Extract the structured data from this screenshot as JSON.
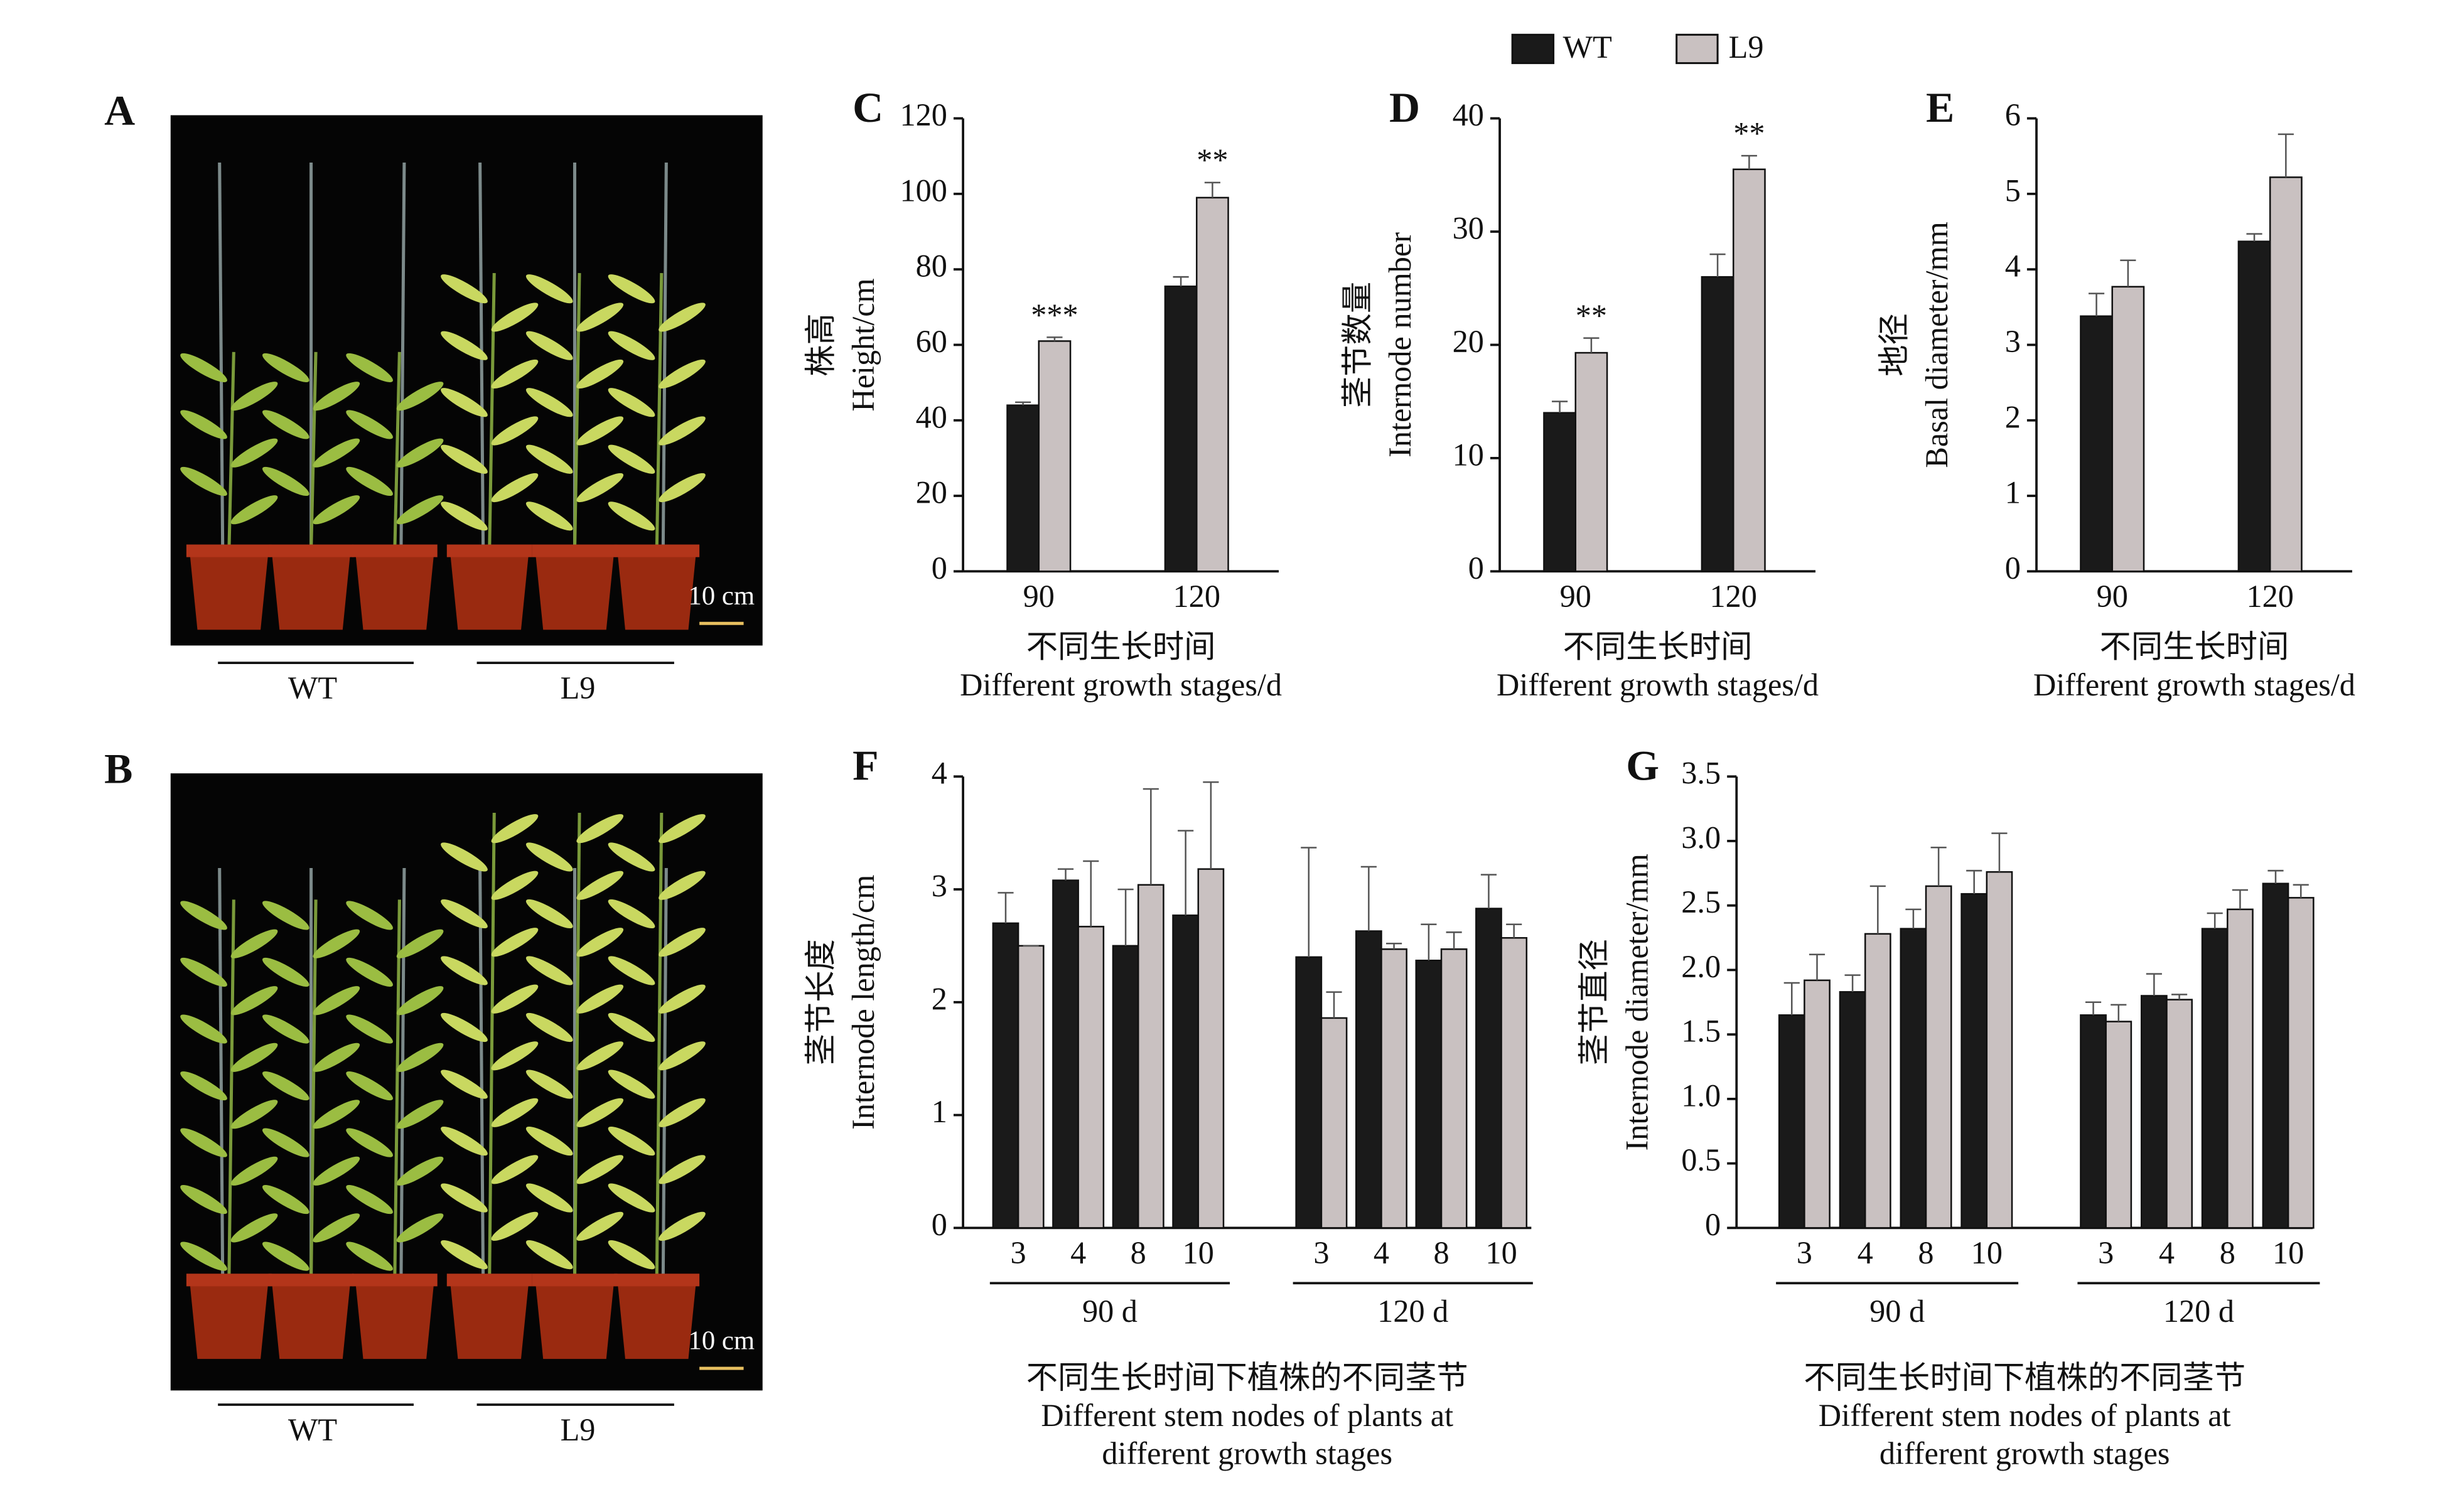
{
  "photos": [
    {
      "panel": "A",
      "scale": "10 cm",
      "groups": [
        "WT",
        "L9"
      ]
    },
    {
      "panel": "B",
      "scale": "10 cm",
      "groups": [
        "WT",
        "L9"
      ]
    }
  ],
  "chart_data": [
    {
      "type": "bar",
      "panel": "C",
      "ylabel": [
        "株高",
        "Height/cm"
      ],
      "xlabel": [
        "不同生长时间",
        "Different growth stages/d"
      ],
      "categories": [
        "90",
        "120"
      ],
      "ylim": [
        0,
        120
      ],
      "yticks": [
        0,
        20,
        40,
        60,
        80,
        100,
        120
      ],
      "series": [
        {
          "name": "WT",
          "color": "#1a1a1a",
          "values": [
            44,
            75.5
          ],
          "errors": [
            0.8,
            2.5
          ]
        },
        {
          "name": "L9",
          "color": "#c9c1c1",
          "values": [
            61,
            99
          ],
          "errors": [
            1,
            4
          ],
          "significance": [
            "***",
            "**"
          ]
        }
      ]
    },
    {
      "type": "bar",
      "panel": "D",
      "ylabel": [
        "茎节数量",
        "Internode number"
      ],
      "xlabel": [
        "不同生长时间",
        "Different growth stages/d"
      ],
      "categories": [
        "90",
        "120"
      ],
      "ylim": [
        0,
        40
      ],
      "yticks": [
        0,
        10,
        20,
        30,
        40
      ],
      "series": [
        {
          "name": "WT",
          "color": "#1a1a1a",
          "values": [
            14,
            26
          ],
          "errors": [
            1,
            2
          ]
        },
        {
          "name": "L9",
          "color": "#c9c1c1",
          "values": [
            19.3,
            35.5
          ],
          "errors": [
            1.3,
            1.2
          ],
          "significance": [
            "**",
            "**"
          ]
        }
      ]
    },
    {
      "type": "bar",
      "panel": "E",
      "ylabel": [
        "地径",
        "Basal diameter/mm"
      ],
      "xlabel": [
        "不同生长时间",
        "Different growth stages/d"
      ],
      "categories": [
        "90",
        "120"
      ],
      "ylim": [
        0,
        6
      ],
      "yticks": [
        0,
        1,
        2,
        3,
        4,
        5,
        6
      ],
      "series": [
        {
          "name": "WT",
          "color": "#1a1a1a",
          "values": [
            3.38,
            4.37
          ],
          "errors": [
            0.3,
            0.1
          ]
        },
        {
          "name": "L9",
          "color": "#c9c1c1",
          "values": [
            3.77,
            5.22
          ],
          "errors": [
            0.35,
            0.57
          ]
        }
      ]
    },
    {
      "type": "bar",
      "panel": "F",
      "ylabel": [
        "茎节长度",
        "Internode length/cm"
      ],
      "xlabel": [
        "不同生长时间下植株的不同茎节",
        "Different stem nodes of plants at",
        "different growth stages"
      ],
      "categories": [
        "3",
        "4",
        "8",
        "10",
        "3",
        "4",
        "8",
        "10"
      ],
      "groups": [
        "90 d",
        "120 d"
      ],
      "ylim": [
        0,
        4
      ],
      "yticks": [
        0,
        1,
        2,
        3,
        4
      ],
      "series": [
        {
          "name": "WT",
          "color": "#1a1a1a",
          "values": [
            2.7,
            3.08,
            2.5,
            2.77,
            2.4,
            2.63,
            2.37,
            2.83
          ],
          "errors": [
            0.27,
            0.1,
            0.5,
            0.75,
            0.97,
            0.57,
            0.32,
            0.3
          ]
        },
        {
          "name": "L9",
          "color": "#c9c1c1",
          "values": [
            2.5,
            2.67,
            3.04,
            3.18,
            1.86,
            2.47,
            2.47,
            2.57
          ],
          "errors": [
            0,
            0.58,
            0.85,
            0.77,
            0.23,
            0.05,
            0.15,
            0.12
          ]
        }
      ]
    },
    {
      "type": "bar",
      "panel": "G",
      "ylabel": [
        "茎节直径",
        "Internode diameter/mm"
      ],
      "xlabel": [
        "不同生长时间下植株的不同茎节",
        "Different stem nodes of plants at",
        "different growth stages"
      ],
      "categories": [
        "3",
        "4",
        "8",
        "10",
        "3",
        "4",
        "8",
        "10"
      ],
      "groups": [
        "90 d",
        "120 d"
      ],
      "ylim": [
        0,
        3.5
      ],
      "yticks": [
        0,
        0.5,
        {
          "value": 1,
          "label": "1.0"
        },
        1.5,
        {
          "value": 2,
          "label": "2.0"
        },
        2.5,
        {
          "value": 3,
          "label": "3.0"
        },
        3.5
      ],
      "series": [
        {
          "name": "WT",
          "color": "#1a1a1a",
          "values": [
            1.65,
            1.83,
            2.32,
            2.59,
            1.65,
            1.8,
            2.32,
            2.67
          ],
          "errors": [
            0.25,
            0.13,
            0.15,
            0.18,
            0.1,
            0.17,
            0.12,
            0.1
          ]
        },
        {
          "name": "L9",
          "color": "#c9c1c1",
          "values": [
            1.92,
            2.28,
            2.65,
            2.76,
            1.6,
            1.77,
            2.47,
            2.56
          ],
          "errors": [
            0.2,
            0.37,
            0.3,
            0.3,
            0.13,
            0.04,
            0.15,
            0.1
          ]
        }
      ]
    }
  ]
}
